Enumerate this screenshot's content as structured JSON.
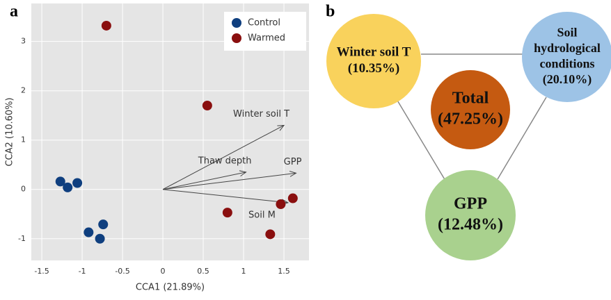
{
  "chart_data": {
    "type": "scatter",
    "panel_label": "a",
    "x_label": "CCA1 (21.89%)",
    "y_label": "CCA2 (10.60%)",
    "xlim": [
      -1.63,
      1.81
    ],
    "ylim": [
      -1.44,
      3.77
    ],
    "xticks": [
      -1.5,
      -1,
      -0.5,
      0,
      0.5,
      1,
      1.5
    ],
    "yticks": [
      -1,
      0,
      1,
      2,
      3
    ],
    "grid": true,
    "legend": "upper right",
    "series": [
      {
        "name": "Control",
        "color": "#0f3f7f",
        "x": [
          -1.27,
          -1.18,
          -1.06,
          -0.92,
          -0.78,
          -0.74
        ],
        "values": [
          0.16,
          0.04,
          0.13,
          -0.87,
          -1.0,
          -0.71
        ]
      },
      {
        "name": "Warmed",
        "color": "#8a0f0f",
        "x": [
          -0.7,
          0.55,
          0.8,
          1.33,
          1.46,
          1.61
        ],
        "values": [
          3.32,
          1.7,
          -0.47,
          -0.91,
          -0.3,
          -0.18
        ]
      }
    ],
    "arrows": [
      {
        "name": "Winter soil T",
        "x": 1.5,
        "y": 1.3
      },
      {
        "name": "GPP",
        "x": 1.65,
        "y": 0.33
      },
      {
        "name": "Thaw depth",
        "x": 1.03,
        "y": 0.35
      },
      {
        "name": "Soil M",
        "x": 1.55,
        "y": -0.27
      }
    ]
  },
  "diagram": {
    "panel_label": "b",
    "nodes": [
      {
        "lines": [
          "Winter soil T"
        ],
        "value": "(10.35%)",
        "color": "#f9d25c"
      },
      {
        "lines": [
          "Soil",
          "hydrological",
          "conditions"
        ],
        "value": "(20.10%)",
        "color": "#9dc3e6"
      },
      {
        "lines": [
          "Total"
        ],
        "value": "(47.25%)",
        "color": "#c55a11"
      },
      {
        "lines": [
          "GPP"
        ],
        "value": "(12.48%)",
        "color": "#a9d18e"
      }
    ]
  }
}
